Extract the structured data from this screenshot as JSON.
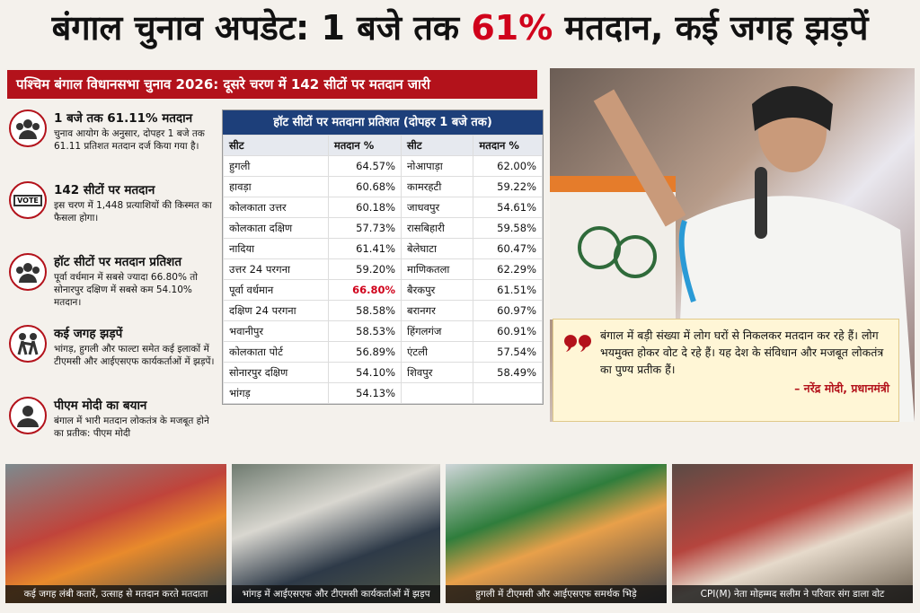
{
  "headline": {
    "before": "बंगाल चुनाव अपडेट: 1 बजे तक ",
    "highlight": "61%",
    "after": " मतदान, कई जगह झड़पें"
  },
  "banner": "पश्चिम बंगाल विधानसभा चुनाव 2026: दूसरे चरण में 142 सीटों पर मतदान जारी",
  "points": [
    {
      "title": "1 बजे तक 61.11% मतदान",
      "text": "चुनाव आयोग के अनुसार, दोपहर 1 बजे तक 61.11 प्रतिशत मतदान दर्ज किया गया है।"
    },
    {
      "title": "142 सीटों पर मतदान",
      "text": "इस चरण में 1,448 प्रत्याशियों की किस्मत का फैसला होगा।",
      "icon_label": "VOTE"
    },
    {
      "title": "हॉट सीटों पर मतदान प्रतिशत",
      "text": "पूर्वा वर्धमान में सबसे ज्यादा 66.80% तो सोनारपुर दक्षिण में सबसे कम 54.10% मतदान।"
    },
    {
      "title": "कई जगह झड़पें",
      "text": "भांगड़, हुगली और फाल्टा समेत कई इलाकों में टीएमसी और आईएसएफ कार्यकर्ताओं में झड़पें।"
    },
    {
      "title": "पीएम मोदी का बयान",
      "text": "बंगाल में भारी मतदान लोकतंत्र के मजबूत होने का प्रतीक: पीएम मोदी"
    }
  ],
  "table": {
    "title": "हॉट सीटों पर मतदाना प्रतिशत (दोपहर 1 बजे तक)",
    "headers": [
      "सीट",
      "मतदान %",
      "सीट",
      "मतदान %"
    ],
    "highlight_color": "#d0021b",
    "left": [
      {
        "seat": "हुगली",
        "pct": "64.57%"
      },
      {
        "seat": "हावड़ा",
        "pct": "60.68%"
      },
      {
        "seat": "कोलकाता उत्तर",
        "pct": "60.18%"
      },
      {
        "seat": "कोलकाता दक्षिण",
        "pct": "57.73%"
      },
      {
        "seat": "नादिया",
        "pct": "61.41%"
      },
      {
        "seat": "उत्तर 24 परगना",
        "pct": "59.20%"
      },
      {
        "seat": "पूर्वा वर्धमान",
        "pct": "66.80%",
        "highlight": true
      },
      {
        "seat": "दक्षिण 24 परगना",
        "pct": "58.58%"
      },
      {
        "seat": "भवानीपुर",
        "pct": "58.53%"
      },
      {
        "seat": "कोलकाता पोर्ट",
        "pct": "56.89%"
      },
      {
        "seat": "सोनारपुर दक्षिण",
        "pct": "54.10%"
      },
      {
        "seat": "भांगड़",
        "pct": "54.13%"
      }
    ],
    "right": [
      {
        "seat": "नोआपाड़ा",
        "pct": "62.00%"
      },
      {
        "seat": "कामरहटी",
        "pct": "59.22%"
      },
      {
        "seat": "जाधवपुर",
        "pct": "54.61%"
      },
      {
        "seat": "रासबिहारी",
        "pct": "59.58%"
      },
      {
        "seat": "बेलेघाटा",
        "pct": "60.47%"
      },
      {
        "seat": "माणिकतला",
        "pct": "62.29%"
      },
      {
        "seat": "बैरकपुर",
        "pct": "61.51%"
      },
      {
        "seat": "बरानगर",
        "pct": "60.97%"
      },
      {
        "seat": "हिंगलगंज",
        "pct": "60.91%"
      },
      {
        "seat": "एंटली",
        "pct": "57.54%"
      },
      {
        "seat": "शिवपुर",
        "pct": "58.49%"
      }
    ]
  },
  "quote": {
    "text": "बंगाल में बड़ी संख्या में लोग घरों से निकलकर मतदान कर रहे हैं। लोग भयमुक्त होकर वोट दे रहे हैं। यह देश के संविधान और मजबूत लोकतंत्र का पुण्य प्रतीक हैं।",
    "author": "– नरेंद्र मोदी, प्रधानमंत्री"
  },
  "photos": [
    {
      "caption": "कई जगह लंबी कतारें, उत्साह से मतदान करते मतदाता"
    },
    {
      "caption": "भांगड़ में आईएसएफ और टीएमसी कार्यकर्ताओं में झड़प"
    },
    {
      "caption": "हुगली में टीएमसी और आईएसएफ समर्थक भिड़े"
    },
    {
      "caption": "CPI(M) नेता मोहम्मद सलीम ने परिवार संग डाला वोट"
    }
  ]
}
